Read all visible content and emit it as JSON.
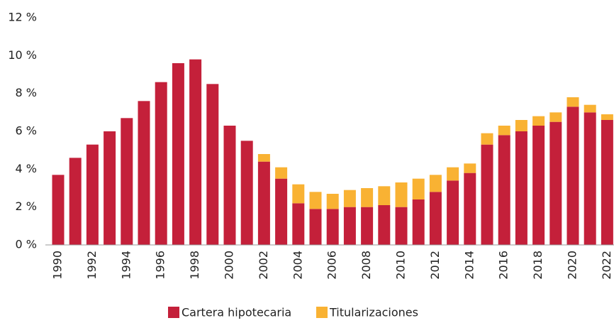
{
  "chart_data": {
    "type": "stacked_bar",
    "categories": [
      "1990",
      null,
      "1992",
      null,
      "1994",
      null,
      "1996",
      null,
      "1998",
      null,
      "2000",
      null,
      "2002",
      null,
      "2004",
      null,
      "2006",
      null,
      "2008",
      null,
      "2010",
      null,
      "2012",
      null,
      "2014",
      null,
      "2016",
      null,
      "2018",
      null,
      "2020",
      null,
      "2022"
    ],
    "series": [
      {
        "name": "Cartera hipotecaria",
        "color": "#c4203a",
        "values": [
          3.7,
          4.6,
          5.3,
          6.0,
          6.7,
          7.6,
          8.6,
          9.6,
          9.8,
          8.5,
          6.3,
          5.5,
          4.4,
          3.5,
          2.2,
          1.9,
          1.9,
          2.0,
          2.0,
          2.1,
          2.0,
          2.4,
          2.8,
          3.4,
          3.8,
          5.3,
          5.8,
          6.0,
          6.3,
          6.5,
          7.3,
          7.0,
          6.6
        ]
      },
      {
        "name": "Titularizaciones",
        "color": "#f9b233",
        "values": [
          0,
          0,
          0,
          0,
          0,
          0,
          0,
          0,
          0,
          0,
          0,
          0,
          0.4,
          0.6,
          1.0,
          0.9,
          0.8,
          0.9,
          1.0,
          1.0,
          1.3,
          1.1,
          0.9,
          0.7,
          0.5,
          0.6,
          0.5,
          0.6,
          0.5,
          0.5,
          0.5,
          0.4,
          0.3
        ]
      }
    ],
    "ylim": [
      0,
      12
    ],
    "yticks": [
      {
        "value": 0,
        "label": "0 %"
      },
      {
        "value": 2,
        "label": "2 %"
      },
      {
        "value": 4,
        "label": "4 %"
      },
      {
        "value": 6,
        "label": "6 %"
      },
      {
        "value": 8,
        "label": "8 %"
      },
      {
        "value": 10,
        "label": "10 %"
      },
      {
        "value": 12,
        "label": "12 %"
      }
    ],
    "grid": false
  }
}
